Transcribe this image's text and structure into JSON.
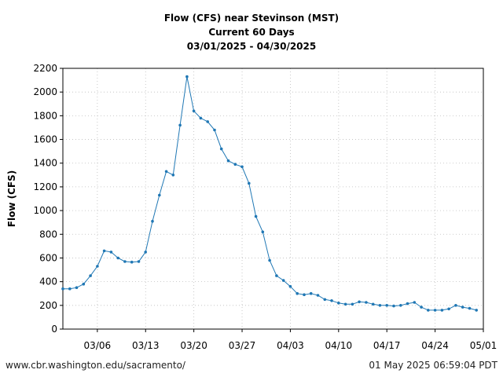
{
  "chart_data": {
    "type": "line",
    "title_lines": [
      "Flow (CFS) near Stevinson (MST)",
      "Current 60 Days",
      "03/01/2025 - 04/30/2025"
    ],
    "xlabel": "",
    "ylabel": "Flow (CFS)",
    "xlim": [
      "2025-03-01",
      "2025-05-01"
    ],
    "ylim": [
      0,
      2200
    ],
    "y_ticks": [
      0,
      200,
      400,
      600,
      800,
      1000,
      1200,
      1400,
      1600,
      1800,
      2000,
      2200
    ],
    "x_ticks": [
      {
        "date": "2025-03-06",
        "label": "03/06"
      },
      {
        "date": "2025-03-13",
        "label": "03/13"
      },
      {
        "date": "2025-03-20",
        "label": "03/20"
      },
      {
        "date": "2025-03-27",
        "label": "03/27"
      },
      {
        "date": "2025-04-03",
        "label": "04/03"
      },
      {
        "date": "2025-04-10",
        "label": "04/10"
      },
      {
        "date": "2025-04-17",
        "label": "04/17"
      },
      {
        "date": "2025-04-24",
        "label": "04/24"
      },
      {
        "date": "2025-05-01",
        "label": "05/01"
      }
    ],
    "grid": true,
    "line_color": "#1f77b4",
    "series": [
      {
        "x": [
          "2025-03-01",
          "2025-03-02",
          "2025-03-03",
          "2025-03-04",
          "2025-03-05",
          "2025-03-06",
          "2025-03-07",
          "2025-03-08",
          "2025-03-09",
          "2025-03-10",
          "2025-03-11",
          "2025-03-12",
          "2025-03-13",
          "2025-03-14",
          "2025-03-15",
          "2025-03-16",
          "2025-03-17",
          "2025-03-18",
          "2025-03-19",
          "2025-03-20",
          "2025-03-21",
          "2025-03-22",
          "2025-03-23",
          "2025-03-24",
          "2025-03-25",
          "2025-03-26",
          "2025-03-27",
          "2025-03-28",
          "2025-03-29",
          "2025-03-30",
          "2025-03-31",
          "2025-04-01",
          "2025-04-02",
          "2025-04-03",
          "2025-04-04",
          "2025-04-05",
          "2025-04-06",
          "2025-04-07",
          "2025-04-08",
          "2025-04-09",
          "2025-04-10",
          "2025-04-11",
          "2025-04-12",
          "2025-04-13",
          "2025-04-14",
          "2025-04-15",
          "2025-04-16",
          "2025-04-17",
          "2025-04-18",
          "2025-04-19",
          "2025-04-20",
          "2025-04-21",
          "2025-04-22",
          "2025-04-23",
          "2025-04-24",
          "2025-04-25",
          "2025-04-26",
          "2025-04-27",
          "2025-04-28",
          "2025-04-29",
          "2025-04-30"
        ],
        "y": [
          340,
          340,
          350,
          380,
          450,
          530,
          660,
          650,
          600,
          570,
          565,
          570,
          650,
          910,
          1130,
          1330,
          1300,
          1720,
          2130,
          1840,
          1780,
          1750,
          1680,
          1520,
          1420,
          1390,
          1370,
          1230,
          950,
          820,
          580,
          450,
          410,
          360,
          300,
          290,
          300,
          285,
          250,
          240,
          220,
          210,
          210,
          230,
          225,
          210,
          200,
          200,
          195,
          200,
          215,
          225,
          185,
          160,
          160,
          160,
          170,
          200,
          185,
          175,
          160
        ]
      }
    ]
  },
  "footer": {
    "source_url": "www.cbr.washington.edu/sacramento/",
    "timestamp": "01 May 2025 06:59:04 PDT"
  }
}
